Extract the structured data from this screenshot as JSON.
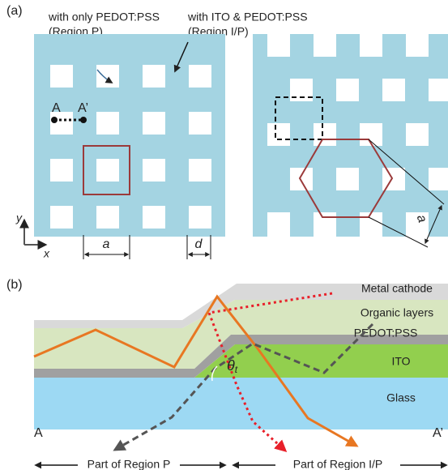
{
  "panel_a": {
    "label": "(a)",
    "callout_p": [
      "with only PEDOT:PSS",
      "(Region P)"
    ],
    "callout_ip": [
      "with ITO & PEDOT:PSS",
      "(Region I/P)"
    ],
    "point_a": "A",
    "point_a_prime": "A’",
    "axis_y": "y",
    "axis_x": "x",
    "period": "a",
    "hole": "d",
    "period_hex": "a"
  },
  "panel_b": {
    "label": "(b)",
    "layers": [
      "Metal cathode",
      "Organic layers",
      "PEDOT:PSS",
      "ITO",
      "Glass"
    ],
    "angle": "θ",
    "angle_sub": "t",
    "end_a": "A",
    "end_a_prime": "A’",
    "regions": [
      "Part of Region P",
      "Part of Region I/P"
    ]
  }
}
